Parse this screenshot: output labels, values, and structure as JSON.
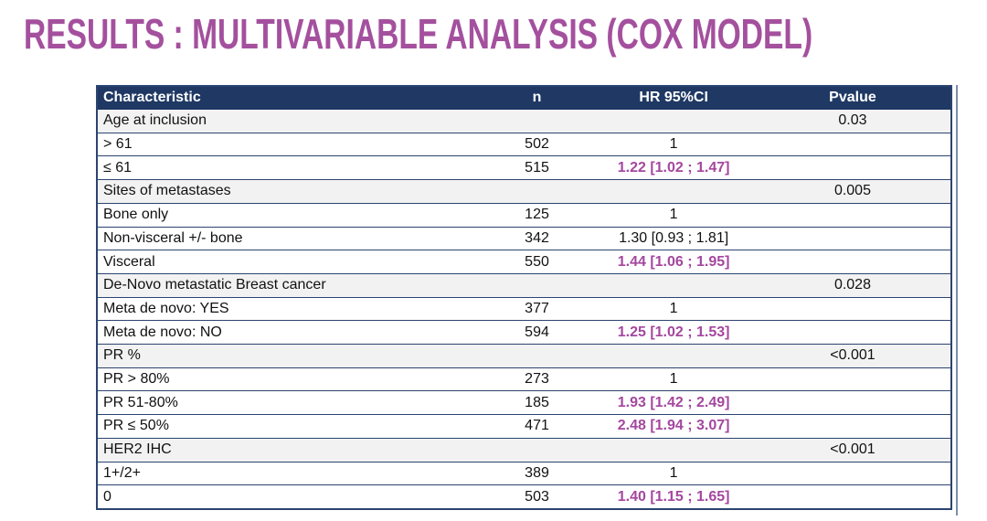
{
  "title": "RESULTS : MULTIVARIABLE ANALYSIS (COX MODEL)",
  "colors": {
    "title_accent": "#A4509E",
    "header_bg": "#1F3864",
    "header_text": "#FFFFFF",
    "highlight_hr": "#A4479F",
    "category_row_bg": "#F2F2F2",
    "table_border": "#2B4470"
  },
  "chart_data": {
    "type": "table",
    "title": "RESULTS : MULTIVARIABLE ANALYSIS (COX MODEL)",
    "columns": [
      "Characteristic",
      "n",
      "HR 95%CI",
      "Pvalue"
    ],
    "rows": [
      {
        "kind": "category",
        "characteristic": "Age at inclusion",
        "n": "",
        "hr": "",
        "pvalue": "0.03",
        "highlight": false
      },
      {
        "kind": "level",
        "characteristic": "> 61",
        "n": "502",
        "hr": "1",
        "pvalue": "",
        "highlight": false
      },
      {
        "kind": "level",
        "characteristic": "≤ 61",
        "n": "515",
        "hr": "1.22 [1.02 ; 1.47]",
        "pvalue": "",
        "highlight": true
      },
      {
        "kind": "category",
        "characteristic": "Sites of metastases",
        "n": "",
        "hr": "",
        "pvalue": "0.005",
        "highlight": false
      },
      {
        "kind": "level",
        "characteristic": "Bone only",
        "n": "125",
        "hr": "1",
        "pvalue": "",
        "highlight": false
      },
      {
        "kind": "level",
        "characteristic": "Non-visceral +/- bone",
        "n": "342",
        "hr": "1.30 [0.93 ; 1.81]",
        "pvalue": "",
        "highlight": false
      },
      {
        "kind": "level",
        "characteristic": "Visceral",
        "n": "550",
        "hr": "1.44 [1.06 ; 1.95]",
        "pvalue": "",
        "highlight": true
      },
      {
        "kind": "category",
        "characteristic": "De-Novo metastatic Breast cancer",
        "n": "",
        "hr": "",
        "pvalue": "0.028",
        "highlight": false
      },
      {
        "kind": "level",
        "characteristic": "Meta de novo: YES",
        "n": "377",
        "hr": "1",
        "pvalue": "",
        "highlight": false
      },
      {
        "kind": "level",
        "characteristic": "Meta de novo: NO",
        "n": "594",
        "hr": "1.25 [1.02 ; 1.53]",
        "pvalue": "",
        "highlight": true
      },
      {
        "kind": "category",
        "characteristic": "PR %",
        "n": "",
        "hr": "",
        "pvalue": "<0.001",
        "highlight": false
      },
      {
        "kind": "level",
        "characteristic": "PR > 80%",
        "n": "273",
        "hr": "1",
        "pvalue": "",
        "highlight": false
      },
      {
        "kind": "level",
        "characteristic": "PR 51-80%",
        "n": "185",
        "hr": "1.93 [1.42 ; 2.49]",
        "pvalue": "",
        "highlight": true
      },
      {
        "kind": "level",
        "characteristic": "PR ≤ 50%",
        "n": "471",
        "hr": "2.48 [1.94 ; 3.07]",
        "pvalue": "",
        "highlight": true
      },
      {
        "kind": "category",
        "characteristic": "HER2 IHC",
        "n": "",
        "hr": "",
        "pvalue": "<0.001",
        "highlight": false
      },
      {
        "kind": "level",
        "characteristic": "1+/2+",
        "n": "389",
        "hr": "1",
        "pvalue": "",
        "highlight": false
      },
      {
        "kind": "level",
        "characteristic": "0",
        "n": "503",
        "hr": "1.40 [1.15 ; 1.65]",
        "pvalue": "",
        "highlight": true
      }
    ]
  }
}
